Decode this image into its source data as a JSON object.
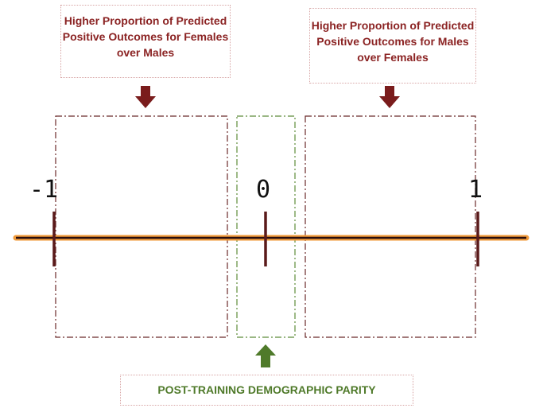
{
  "callouts": {
    "left": "Higher Proportion of Predicted Positive Outcomes for Females over Males",
    "right": "Higher Proportion of Predicted Positive Outcomes for Males over Females",
    "bottom": "POST-TRAINING DEMOGRAPHIC PARITY"
  },
  "axis": {
    "ticks": [
      "-1",
      "0",
      "1"
    ]
  },
  "colors": {
    "axis_line": "#2a0f0f",
    "axis_glow": "#f09a3a",
    "tick": "#5a1a1a",
    "red_arrow": "#7a1c1c",
    "green_arrow": "#4f7a2a",
    "red_box": "#6b2a2a",
    "green_box": "#5e8c3a"
  }
}
